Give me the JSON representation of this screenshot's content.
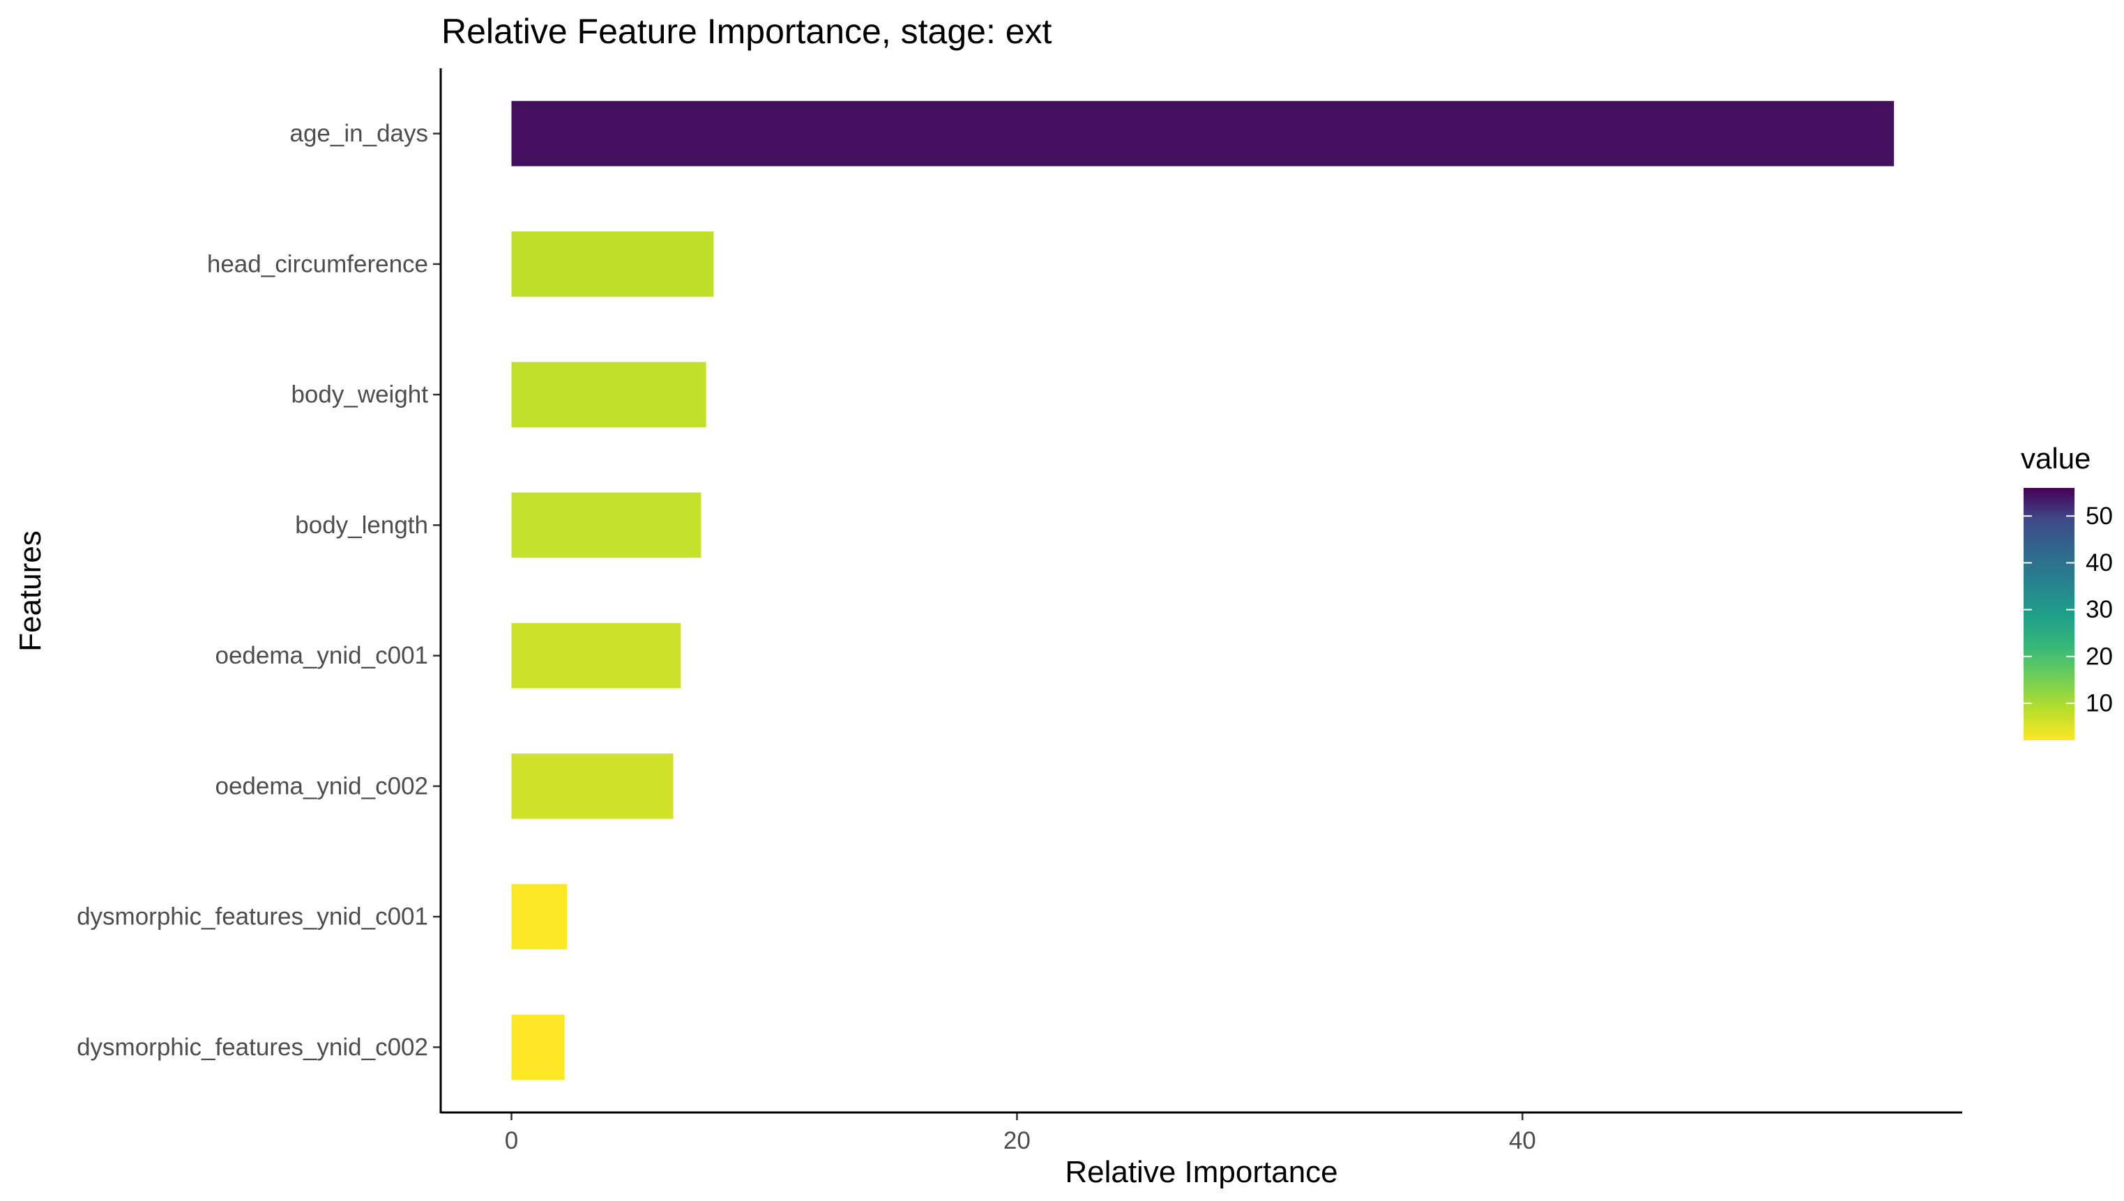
{
  "chart_data": {
    "type": "bar",
    "orientation": "horizontal",
    "title": "Relative Feature Importance, stage: ext",
    "xlabel": "Relative Importance",
    "ylabel": "Features",
    "categories": [
      "age_in_days",
      "head_circumference",
      "body_weight",
      "body_length",
      "oedema_ynid_c001",
      "oedema_ynid_c002",
      "dysmorphic_features_ynid_c001",
      "dysmorphic_features_ynid_c002"
    ],
    "values": [
      54.7,
      8.0,
      7.7,
      7.5,
      6.7,
      6.4,
      2.2,
      2.1
    ],
    "xlim": [
      -2.8,
      57.4
    ],
    "xticks": [
      0,
      20,
      40
    ],
    "grid": false,
    "legend": {
      "title": "value",
      "placement": "right",
      "type": "colorbar",
      "palette": "viridis",
      "range": [
        2.1,
        56
      ],
      "ticks": [
        10,
        20,
        30,
        40,
        50
      ]
    }
  }
}
